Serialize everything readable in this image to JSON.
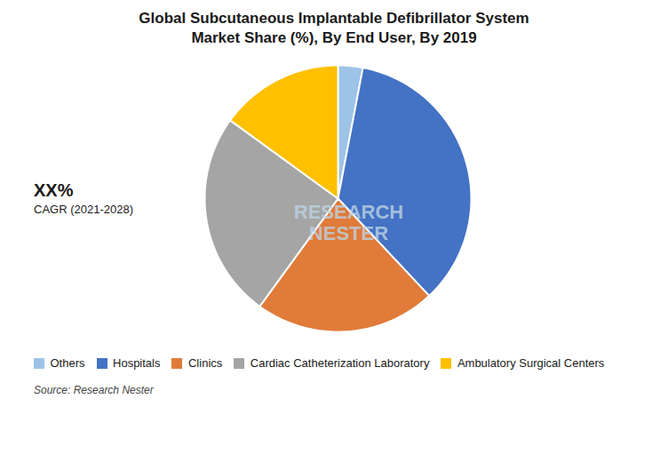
{
  "chart_data": {
    "type": "pie",
    "title": "Global Subcutaneous Implantable Defibrillator System\nMarket Share (%), By End User, By 2019",
    "categories": [
      "Others",
      "Hospitals",
      "Clinics",
      "Cardiac Catheterization Laboratory",
      "Ambulatory Surgical Centers"
    ],
    "values": [
      3,
      35,
      22,
      25,
      15
    ],
    "colors": [
      "#9DC3E6",
      "#4472C4",
      "#E07B39",
      "#A5A5A5",
      "#FFC000"
    ],
    "annotations": [
      "XX%",
      "CAGR (2021-2028)",
      "RESEARCH\nNESTER",
      "Source: Research Nester"
    ],
    "legend": "bottom"
  }
}
